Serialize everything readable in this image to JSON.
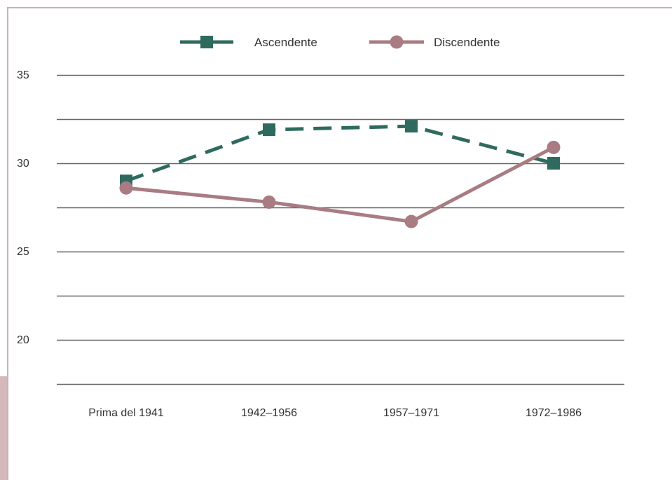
{
  "chart_data": {
    "type": "line",
    "categories": [
      "Prima del 1941",
      "1942–1956",
      "1957–1971",
      "1972–1986"
    ],
    "series": [
      {
        "name": "Ascendente",
        "values": [
          29.0,
          31.9,
          32.1,
          30.0
        ],
        "color": "#2e6b5e",
        "style": "dashed",
        "marker": "square"
      },
      {
        "name": "Discendente",
        "values": [
          28.6,
          27.8,
          26.7,
          30.9
        ],
        "color": "#a87c82",
        "style": "solid",
        "marker": "circle"
      }
    ],
    "yticks": [
      "35",
      "30",
      "25",
      "20"
    ],
    "ylim": [
      17.5,
      35
    ],
    "grid": true,
    "legend": "top-center"
  }
}
